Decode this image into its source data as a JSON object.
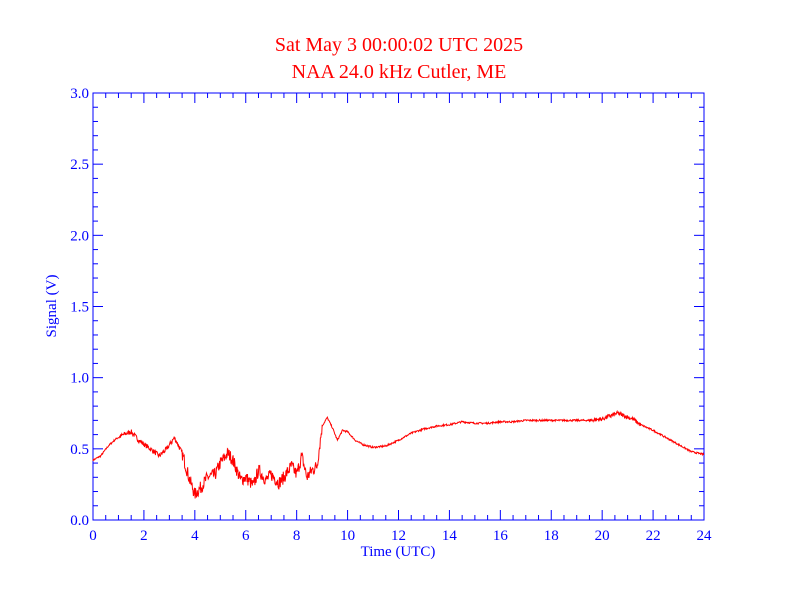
{
  "colors": {
    "axis": "#0000ff",
    "title": "#ff0000",
    "series": "#ff0000",
    "background": "#ffffff"
  },
  "chart_data": {
    "type": "line",
    "title": "Sat May 3 00:00:02 UTC 2025",
    "subtitle": "NAA 24.0 kHz Cutler, ME",
    "xlabel": "Time (UTC)",
    "ylabel": "Signal (V)",
    "xlim": [
      0,
      24
    ],
    "ylim": [
      0,
      3
    ],
    "xticks": [
      0,
      2,
      4,
      6,
      8,
      10,
      12,
      14,
      16,
      18,
      20,
      22,
      24
    ],
    "xtick_labels": [
      "0",
      "2",
      "4",
      "6",
      "8",
      "10",
      "12",
      "14",
      "16",
      "18",
      "20",
      "22",
      "24"
    ],
    "yticks": [
      0,
      0.5,
      1,
      1.5,
      2,
      2.5,
      3
    ],
    "ytick_labels": [
      "0.0",
      "0.5",
      "1.0",
      "1.5",
      "2.0",
      "2.5",
      "3.0"
    ],
    "grid": false,
    "series": [
      {
        "x": [
          0,
          0.3,
          0.6,
          0.9,
          1.2,
          1.5,
          1.8,
          2.1,
          2.4,
          2.6,
          2.9,
          3.2,
          3.5,
          3.8,
          4.0,
          4.2,
          4.5,
          4.8,
          5.0,
          5.3,
          5.5,
          5.8,
          6.0,
          6.3,
          6.5,
          6.8,
          7.0,
          7.3,
          7.5,
          7.8,
          8.0,
          8.2,
          8.4,
          8.6,
          8.8,
          9.0,
          9.2,
          9.4,
          9.6,
          9.8,
          10.0,
          10.3,
          10.6,
          11.0,
          11.5,
          12.0,
          12.5,
          13.0,
          13.5,
          14.0,
          14.5,
          15.0,
          15.5,
          16.0,
          16.5,
          17.0,
          17.5,
          18.0,
          18.5,
          19.0,
          19.5,
          20.0,
          20.3,
          20.6,
          20.9,
          21.2,
          21.5,
          22.0,
          22.5,
          23.0,
          23.5,
          24.0
        ],
        "values": [
          0.42,
          0.45,
          0.52,
          0.57,
          0.6,
          0.62,
          0.56,
          0.52,
          0.48,
          0.45,
          0.5,
          0.58,
          0.47,
          0.28,
          0.18,
          0.22,
          0.3,
          0.32,
          0.4,
          0.47,
          0.42,
          0.28,
          0.3,
          0.24,
          0.35,
          0.28,
          0.32,
          0.26,
          0.3,
          0.38,
          0.32,
          0.45,
          0.3,
          0.35,
          0.38,
          0.66,
          0.72,
          0.65,
          0.56,
          0.63,
          0.62,
          0.56,
          0.53,
          0.51,
          0.52,
          0.56,
          0.61,
          0.64,
          0.66,
          0.67,
          0.69,
          0.68,
          0.68,
          0.69,
          0.69,
          0.7,
          0.7,
          0.7,
          0.7,
          0.7,
          0.7,
          0.71,
          0.73,
          0.75,
          0.73,
          0.71,
          0.67,
          0.63,
          0.58,
          0.53,
          0.48,
          0.46
        ]
      }
    ]
  }
}
